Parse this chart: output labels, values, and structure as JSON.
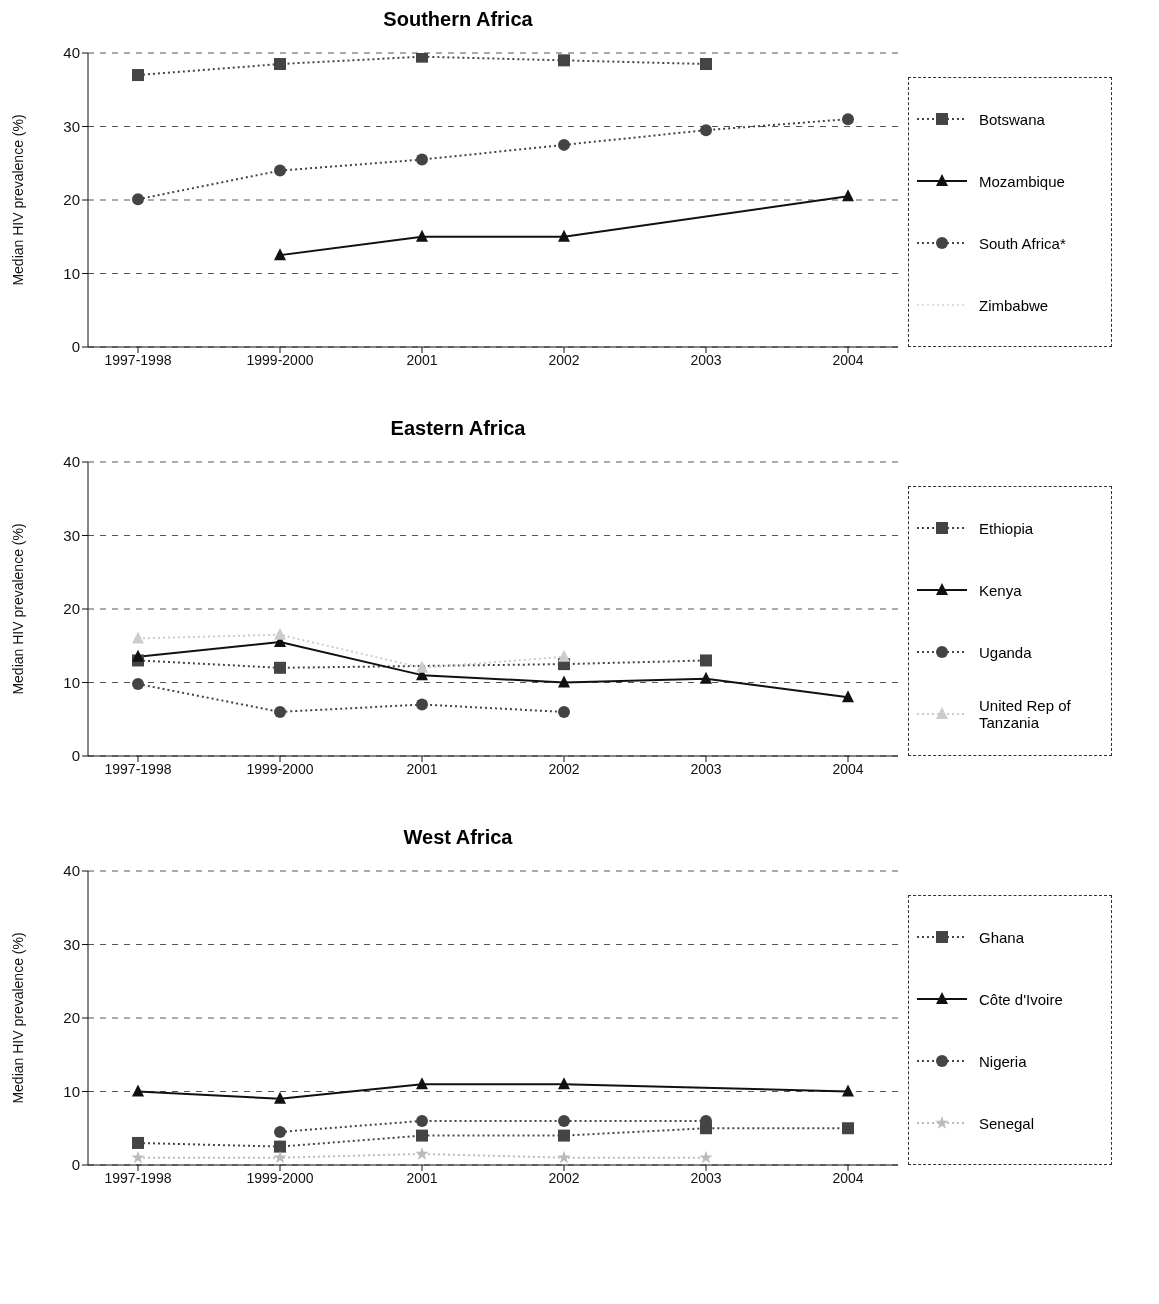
{
  "chart_data": [
    {
      "type": "line",
      "title": "Southern Africa",
      "ylabel": "Median HIV prevalence (%)",
      "categories": [
        "1997-1998",
        "1999-2000",
        "2001",
        "2002",
        "2003",
        "2004"
      ],
      "ylim": [
        0,
        40
      ],
      "yticks": [
        0,
        10,
        20,
        30,
        40
      ],
      "grid": "y",
      "legend": "right",
      "series": [
        {
          "name": "Botswana",
          "color": "#444444",
          "marker": "square",
          "line_style": "dotted",
          "values": [
            37,
            38.5,
            39.5,
            39,
            38.5,
            null
          ]
        },
        {
          "name": "Mozambique",
          "color": "#111111",
          "marker": "triangle",
          "line_style": "solid",
          "values": [
            null,
            12.5,
            15,
            15,
            null,
            20.5
          ]
        },
        {
          "name": "South Africa*",
          "color": "#444444",
          "marker": "circle",
          "line_style": "dotted",
          "values": [
            20.1,
            24,
            25.5,
            27.5,
            29.5,
            31
          ]
        },
        {
          "name": "Zimbabwe",
          "color": "#dddddd",
          "marker": "none",
          "line_style": "dotted",
          "values": [
            null,
            null,
            null,
            null,
            null,
            null
          ]
        }
      ]
    },
    {
      "type": "line",
      "title": "Eastern Africa",
      "ylabel": "Median HIV prevalence (%)",
      "categories": [
        "1997-1998",
        "1999-2000",
        "2001",
        "2002",
        "2003",
        "2004"
      ],
      "ylim": [
        0,
        40
      ],
      "yticks": [
        0,
        10,
        20,
        30,
        40
      ],
      "grid": "y",
      "legend": "right",
      "series": [
        {
          "name": "Ethiopia",
          "color": "#444444",
          "marker": "square",
          "line_style": "dotted",
          "values": [
            13,
            12,
            null,
            12.5,
            13,
            null
          ]
        },
        {
          "name": "Kenya",
          "color": "#111111",
          "marker": "triangle",
          "line_style": "solid",
          "values": [
            13.5,
            15.5,
            11,
            10,
            10.5,
            8
          ]
        },
        {
          "name": "Uganda",
          "color": "#444444",
          "marker": "circle",
          "line_style": "dotted",
          "values": [
            9.8,
            6,
            7,
            6,
            null,
            null
          ]
        },
        {
          "name": "United Rep of Tanzania",
          "color": "#cccccc",
          "marker": "triangle",
          "line_style": "dotted",
          "values": [
            16,
            16.5,
            12,
            13.5,
            null,
            null
          ]
        }
      ]
    },
    {
      "type": "line",
      "title": "West Africa",
      "ylabel": "Median HIV prevalence (%)",
      "categories": [
        "1997-1998",
        "1999-2000",
        "2001",
        "2002",
        "2003",
        "2004"
      ],
      "ylim": [
        0,
        40
      ],
      "yticks": [
        0,
        10,
        20,
        30,
        40
      ],
      "grid": "y",
      "legend": "right",
      "series": [
        {
          "name": "Ghana",
          "color": "#444444",
          "marker": "square",
          "line_style": "dotted",
          "values": [
            3,
            2.5,
            4,
            4,
            5,
            5
          ]
        },
        {
          "name": "Côte d'Ivoire",
          "color": "#111111",
          "marker": "triangle",
          "line_style": "solid",
          "values": [
            10,
            9,
            11,
            11,
            null,
            10
          ]
        },
        {
          "name": "Nigeria",
          "color": "#444444",
          "marker": "circle",
          "line_style": "dotted",
          "values": [
            null,
            4.5,
            6,
            6,
            6,
            null
          ]
        },
        {
          "name": "Senegal",
          "color": "#bbbbbb",
          "marker": "star",
          "line_style": "dotted",
          "values": [
            1,
            1,
            1.5,
            1,
            1,
            null
          ]
        }
      ]
    }
  ]
}
